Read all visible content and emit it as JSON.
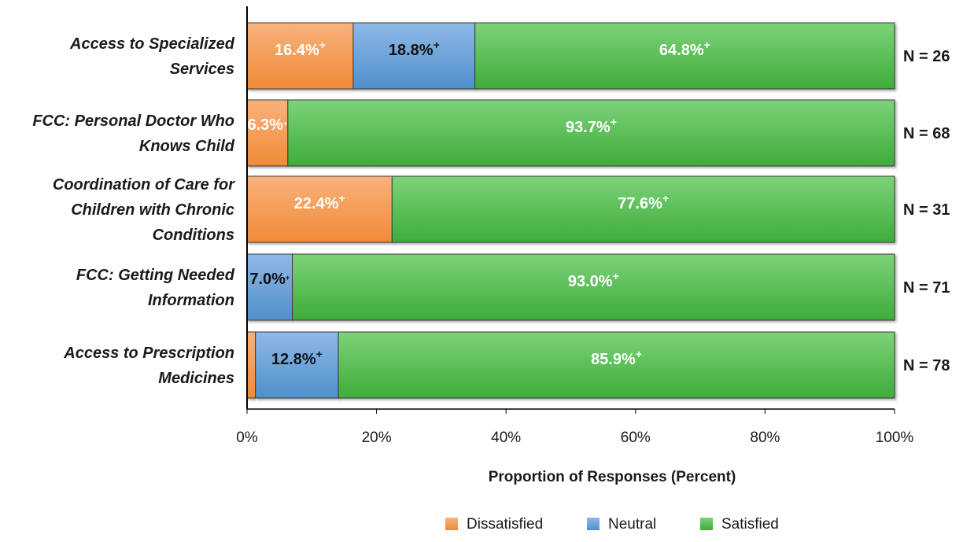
{
  "chart_data": {
    "type": "bar",
    "orientation": "horizontal",
    "stacked": true,
    "title": "",
    "xlabel": "Proportion of Responses (Percent)",
    "ylabel": "",
    "xlim": [
      0,
      100
    ],
    "x_ticks": [
      "0%",
      "20%",
      "40%",
      "60%",
      "80%",
      "100%"
    ],
    "grid": false,
    "legend_position": "bottom",
    "categories": [
      "Access to Specialized Services",
      "FCC: Personal Doctor Who Knows Child",
      "Coordination of Care for Children with Chronic Conditions",
      "FCC: Getting Needed Information",
      "Access to Prescription Medicines"
    ],
    "category_lines": [
      [
        "Access to Specialized",
        "Services"
      ],
      [
        "FCC: Personal Doctor Who",
        "Knows Child"
      ],
      [
        "Coordination of Care for",
        "Children with Chronic",
        "Conditions"
      ],
      [
        "FCC: Getting Needed",
        "Information"
      ],
      [
        "Access to Prescription",
        "Medicines"
      ]
    ],
    "series": [
      {
        "name": "Dissatisfied",
        "color": "#F79646",
        "values": [
          16.4,
          6.3,
          22.4,
          0,
          1.3
        ],
        "labels": [
          "16.4%",
          "6.3%",
          "22.4%",
          "",
          ""
        ]
      },
      {
        "name": "Neutral",
        "color": "#5B9BD5",
        "values": [
          18.8,
          0,
          0,
          7.0,
          12.8
        ],
        "labels": [
          "18.8%",
          "",
          "",
          "7.0%",
          "12.8%"
        ]
      },
      {
        "name": "Satisfied",
        "color": "#4CB848",
        "values": [
          64.8,
          93.7,
          77.6,
          93.0,
          85.9
        ],
        "labels": [
          "64.8%",
          "93.7%",
          "77.6%",
          "93.0%",
          "85.9%"
        ]
      }
    ],
    "label_marker": "+",
    "n_prefix": "N =",
    "n_values": [
      "26",
      "68",
      "31",
      "71",
      "78"
    ]
  }
}
